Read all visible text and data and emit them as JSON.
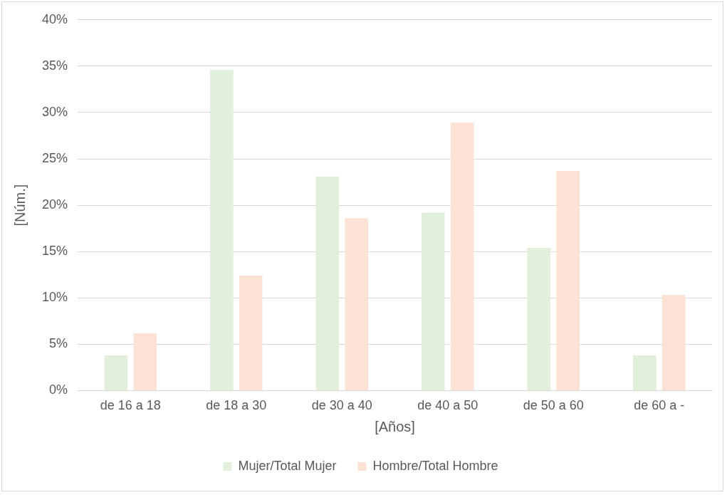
{
  "chart_data": {
    "type": "bar",
    "xlabel": "[Años]",
    "ylabel": "[Núm.]",
    "categories": [
      "de 16 a 18",
      "de 18 a 30",
      "de 30 a 40",
      "de 40 a 50",
      "de 50 a 60",
      "de 60 a -"
    ],
    "series": [
      {
        "name": "Mujer/Total Mujer",
        "color": "#e2efda",
        "values": [
          3.8,
          34.6,
          23.1,
          19.2,
          15.4,
          3.8
        ]
      },
      {
        "name": "Hombre/Total Hombre",
        "color": "#fbe2d5",
        "values": [
          6.2,
          12.4,
          18.6,
          28.9,
          23.7,
          10.3
        ]
      }
    ],
    "ylim": [
      0,
      40
    ],
    "yticks": [
      {
        "value": 0,
        "label": "0%"
      },
      {
        "value": 5,
        "label": "5%"
      },
      {
        "value": 10,
        "label": "10%"
      },
      {
        "value": 15,
        "label": "15%"
      },
      {
        "value": 20,
        "label": "20%"
      },
      {
        "value": 25,
        "label": "25%"
      },
      {
        "value": 30,
        "label": "30%"
      },
      {
        "value": 35,
        "label": "35%"
      },
      {
        "value": 40,
        "label": "40%"
      }
    ],
    "grid": "y",
    "legend": "bottom"
  }
}
